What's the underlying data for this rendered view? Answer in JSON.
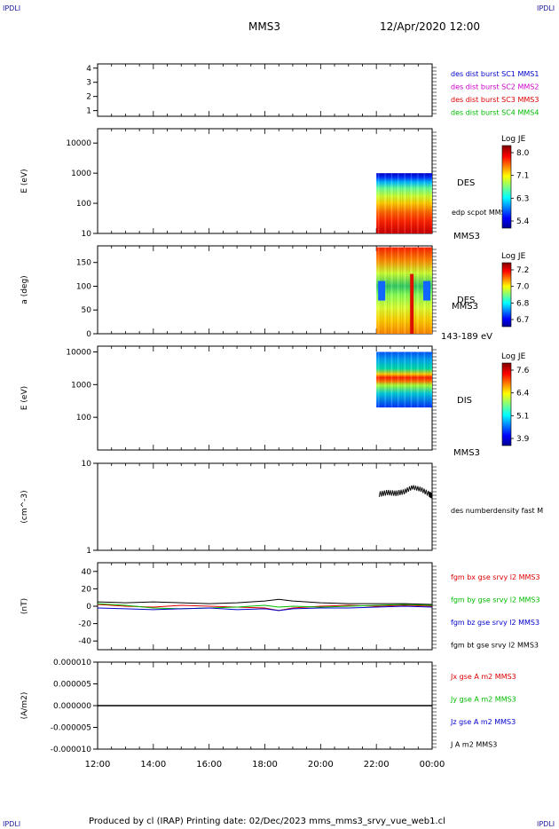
{
  "header": {
    "corner_label": "IPDLI",
    "mission": "MMS3",
    "date": "12/Apr/2020 12:00"
  },
  "footer": {
    "text": "Produced by cl (IRAP)   Printing date: 02/Dec/2023   mms_mms3_srvy_vue_web1.cl"
  },
  "colors": {
    "mms1": "#0000cc",
    "mms2": "#cc00cc",
    "mms3": "#dd0000",
    "mms4": "#00bb00",
    "bx": "#dd0000",
    "by": "#00bb00",
    "bz": "#0000cc",
    "bt": "#000000"
  },
  "chart_data": [
    {
      "id": "burst",
      "type": "line",
      "yticks": [
        "1",
        "2",
        "3",
        "4"
      ],
      "ylim": [
        0.6,
        4.3
      ],
      "legend": [
        {
          "label": "des dist burst SC1 MMS1",
          "color": "#0000cc"
        },
        {
          "label": "des dist burst SC2 MMS2",
          "color": "#cc00cc"
        },
        {
          "label": "des dist burst SC3 MMS3",
          "color": "#dd0000"
        },
        {
          "label": "des dist burst SC4 MMS4",
          "color": "#00bb00"
        }
      ]
    },
    {
      "id": "des-energy",
      "type": "heatmap",
      "ylabel": "E (eV)",
      "yscale": "log",
      "yticks": [
        "10",
        "100",
        "1000",
        "10000"
      ],
      "ylim": [
        10,
        30000
      ],
      "label": "DES",
      "sublabel": "edp scpot MMS3",
      "instrument": "MMS3",
      "colorbar": {
        "title": "Log JE",
        "ticks": [
          "8.0",
          "7.1",
          "6.3",
          "5.4"
        ]
      },
      "data_start": "22:00",
      "data_stop": "24:00",
      "description_max_energy": 1000
    },
    {
      "id": "des-pitch",
      "type": "heatmap",
      "ylabel": "a (deg)",
      "yticks": [
        "0",
        "50",
        "100",
        "150"
      ],
      "ylim": [
        0,
        185
      ],
      "label": "DES",
      "sublabel": "MMS3",
      "energy_range": "143-189 eV",
      "colorbar": {
        "title": "Log JE",
        "ticks": [
          "7.2",
          "7.0",
          "6.8",
          "6.7"
        ]
      },
      "data_start": "22:00",
      "data_stop": "24:00"
    },
    {
      "id": "dis-energy",
      "type": "heatmap",
      "ylabel": "E (eV)",
      "yscale": "log",
      "yticks": [
        "100",
        "1000",
        "10000"
      ],
      "ylim": [
        10,
        15000
      ],
      "label": "DIS",
      "instrument": "MMS3",
      "colorbar": {
        "title": "Log JE",
        "ticks": [
          "7.6",
          "6.4",
          "5.1",
          "3.9"
        ]
      },
      "data_start": "22:00",
      "data_stop": "24:00"
    },
    {
      "id": "density",
      "type": "line",
      "ylabel": "(cm^-3)",
      "yscale": "log",
      "yticks": [
        "1",
        "10"
      ],
      "ylim": [
        1,
        10
      ],
      "legend": [
        {
          "label": "des numberdensity fast M",
          "color": "#000000"
        }
      ],
      "series": [
        {
          "name": "des numberdensity fast M",
          "x_hours": [
            22.1,
            22.4,
            22.7,
            23.0,
            23.3,
            23.6,
            23.9,
            24.0
          ],
          "values": [
            4.4,
            4.6,
            4.5,
            4.7,
            5.3,
            5.0,
            4.4,
            4.2
          ]
        }
      ]
    },
    {
      "id": "bfield",
      "type": "line",
      "ylabel": "(nT)",
      "yticks": [
        "-40",
        "-20",
        "0",
        "20",
        "40"
      ],
      "ylim": [
        -50,
        50
      ],
      "legend": [
        {
          "label": "fgm bx gse srvy l2 MMS3",
          "color": "#dd0000"
        },
        {
          "label": "fgm by gse srvy l2 MMS3",
          "color": "#00bb00"
        },
        {
          "label": "fgm bz gse srvy l2 MMS3",
          "color": "#0000cc"
        },
        {
          "label": "fgm bt gse srvy l2 MMS3",
          "color": "#000000"
        }
      ],
      "x_hours": [
        12,
        13,
        14,
        15,
        16,
        17,
        18,
        18.5,
        19,
        20,
        21,
        22,
        23,
        24
      ],
      "series": [
        {
          "name": "fgm bx gse srvy l2 MMS3",
          "values": [
            2,
            0,
            -1,
            1,
            0,
            -1,
            -2,
            -5,
            -2,
            0,
            1,
            0,
            1,
            0
          ]
        },
        {
          "name": "fgm by gse srvy l2 MMS3",
          "values": [
            3,
            1,
            -2,
            -3,
            -2,
            -1,
            1,
            -1,
            0,
            -1,
            0,
            1,
            2,
            1
          ]
        },
        {
          "name": "fgm bz gse srvy l2 MMS3",
          "values": [
            -2,
            -3,
            -4,
            -3,
            -2,
            -4,
            -3,
            -5,
            -3,
            -2,
            -2,
            -1,
            0,
            -1
          ]
        },
        {
          "name": "fgm bt gse srvy l2 MMS3",
          "values": [
            5,
            4,
            5,
            4,
            3,
            4,
            6,
            8,
            6,
            4,
            3,
            3,
            3,
            2
          ]
        }
      ]
    },
    {
      "id": "current",
      "type": "line",
      "ylabel": "(A/m2)",
      "yticks": [
        "-0.000010",
        "-0.000005",
        "0.000000",
        "0.000005",
        "0.000010"
      ],
      "ylim": [
        -1e-05,
        1e-05
      ],
      "legend": [
        {
          "label": "Jx gse A m2 MMS3",
          "color": "#dd0000"
        },
        {
          "label": "Jy gse A m2 MMS3",
          "color": "#00bb00"
        },
        {
          "label": "Jz gse A m2 MMS3",
          "color": "#0000cc"
        },
        {
          "label": "J A m2 MMS3",
          "color": "#000000"
        }
      ],
      "series": [
        {
          "name": "J A m2 MMS3",
          "x_hours": [
            12,
            24
          ],
          "values": [
            0,
            0
          ]
        }
      ]
    }
  ],
  "time_axis": {
    "ticks": [
      "12:00",
      "14:00",
      "16:00",
      "18:00",
      "20:00",
      "22:00",
      "00:00"
    ],
    "start_hour": 12,
    "end_hour": 24
  }
}
